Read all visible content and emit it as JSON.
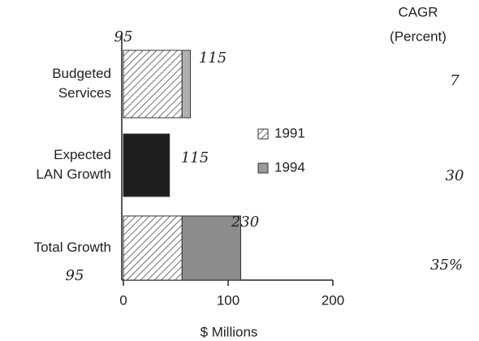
{
  "chart_data": {
    "type": "stacked-barh",
    "categories": [
      "Budgeted Services",
      "Expected LAN Growth",
      "Total Growth"
    ],
    "category_lines": [
      [
        "Budgeted",
        "Services"
      ],
      [
        "Expected",
        "LAN Growth"
      ],
      [
        "Total Growth"
      ]
    ],
    "series": [
      {
        "name": "1991",
        "color": "#ffffff",
        "pattern": "hatch",
        "values": [
          56,
          null,
          56
        ]
      },
      {
        "name": "1994",
        "color": "#9a9a9a",
        "colors": [
          "#b0b0b0",
          "#1e1e1e",
          "#8c8c8c"
        ],
        "values": [
          8,
          44,
          56
        ]
      }
    ],
    "xlim": [
      0,
      200
    ],
    "xticks": [
      0,
      100,
      200
    ],
    "xlabel": "$ Millions",
    "annotations": [
      "95",
      "115",
      "115",
      "230",
      "95"
    ],
    "cagr_title": "CAGR",
    "cagr_subtitle": "(Percent)",
    "cagr_values": [
      "7",
      "30",
      "35%"
    ]
  }
}
